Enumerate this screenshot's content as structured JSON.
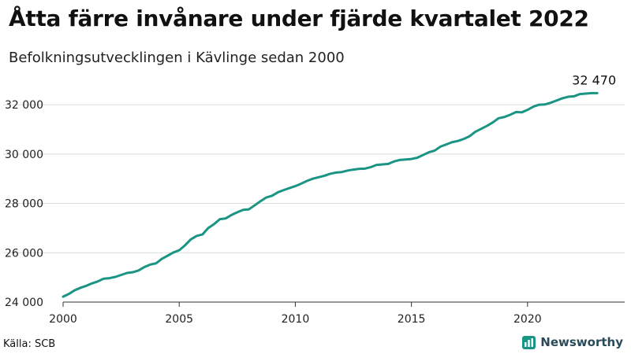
{
  "title": "Åtta färre invånare under fjärde kvartalet 2022",
  "subtitle": "Befolkningsutvecklingen i Kävlinge sedan 2000",
  "source": "Källa: SCB",
  "brand": {
    "name": "Newsworthy",
    "icon": "bar-chart-icon",
    "color": "#2a4a5a"
  },
  "chart_data": {
    "type": "line",
    "title": "Åtta färre invånare under fjärde kvartalet 2022",
    "subtitle": "Befolkningsutvecklingen i Kävlinge sedan 2000",
    "xlabel": "",
    "ylabel": "",
    "xlim": [
      2000,
      2023.3
    ],
    "ylim": [
      24000,
      32800
    ],
    "grid": true,
    "legend": "none",
    "x_ticks": [
      2000,
      2005,
      2010,
      2015,
      2020
    ],
    "y_ticks": [
      24000,
      26000,
      28000,
      30000,
      32000
    ],
    "y_tick_labels": [
      "24 000",
      "26 000",
      "28 000",
      "30 000",
      "32 000"
    ],
    "color": "#1a9484",
    "end_label": "32 470",
    "series": [
      {
        "x": [
          2000.0,
          2000.25,
          2000.5,
          2000.75,
          2001.0,
          2001.25,
          2001.5,
          2001.75,
          2002.0,
          2002.25,
          2002.5,
          2002.75,
          2003.0,
          2003.25,
          2003.5,
          2003.75,
          2004.0,
          2004.25,
          2004.5,
          2004.75,
          2005.0,
          2005.25,
          2005.5,
          2005.75,
          2006.0,
          2006.25,
          2006.5,
          2006.75,
          2007.0,
          2007.25,
          2007.5,
          2007.75,
          2008.0,
          2008.25,
          2008.5,
          2008.75,
          2009.0,
          2009.25,
          2009.5,
          2009.75,
          2010.0,
          2010.25,
          2010.5,
          2010.75,
          2011.0,
          2011.25,
          2011.5,
          2011.75,
          2012.0,
          2012.25,
          2012.5,
          2012.75,
          2013.0,
          2013.25,
          2013.5,
          2013.75,
          2014.0,
          2014.25,
          2014.5,
          2014.75,
          2015.0,
          2015.25,
          2015.5,
          2015.75,
          2016.0,
          2016.25,
          2016.5,
          2016.75,
          2017.0,
          2017.25,
          2017.5,
          2017.75,
          2018.0,
          2018.25,
          2018.5,
          2018.75,
          2019.0,
          2019.25,
          2019.5,
          2019.75,
          2020.0,
          2020.25,
          2020.5,
          2020.75,
          2021.0,
          2021.25,
          2021.5,
          2021.75,
          2022.0,
          2022.25,
          2022.5,
          2022.75,
          2023.0
        ],
        "values": [
          24220,
          24330,
          24480,
          24580,
          24660,
          24760,
          24840,
          24950,
          24970,
          25020,
          25100,
          25180,
          25210,
          25280,
          25420,
          25520,
          25570,
          25750,
          25880,
          26010,
          26100,
          26300,
          26540,
          26680,
          26740,
          27000,
          27160,
          27360,
          27390,
          27530,
          27640,
          27740,
          27760,
          27920,
          28090,
          28240,
          28310,
          28450,
          28540,
          28620,
          28700,
          28800,
          28910,
          29000,
          29060,
          29120,
          29200,
          29250,
          29270,
          29330,
          29370,
          29400,
          29410,
          29470,
          29560,
          29580,
          29600,
          29700,
          29760,
          29780,
          29800,
          29850,
          29960,
          30070,
          30140,
          30300,
          30390,
          30480,
          30530,
          30610,
          30720,
          30900,
          31020,
          31140,
          31280,
          31450,
          31500,
          31590,
          31700,
          31690,
          31790,
          31920,
          32000,
          32010,
          32080,
          32170,
          32260,
          32320,
          32340,
          32430,
          32450,
          32470,
          32470
        ]
      }
    ]
  }
}
